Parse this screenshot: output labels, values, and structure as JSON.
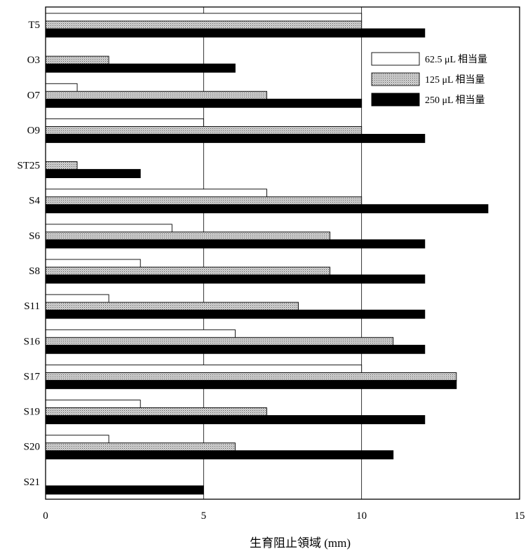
{
  "chart_data": {
    "type": "bar",
    "orientation": "horizontal",
    "categories": [
      "T5",
      "O3",
      "O7",
      "O9",
      "ST25",
      "S4",
      "S6",
      "S8",
      "S11",
      "S16",
      "S17",
      "S19",
      "S20",
      "S21"
    ],
    "series": [
      {
        "name": "62.5 μL 相当量",
        "fill": "white",
        "values": [
          10,
          0,
          1,
          5,
          0,
          7,
          4,
          3,
          2,
          6,
          10,
          3,
          2,
          0
        ]
      },
      {
        "name": "125 μL 相当量",
        "fill": "dotted",
        "values": [
          10,
          2,
          7,
          10,
          1,
          10,
          9,
          9,
          8,
          11,
          13,
          7,
          6,
          0
        ]
      },
      {
        "name": "250 μL 相当量",
        "fill": "black",
        "values": [
          12,
          6,
          10,
          12,
          3,
          14,
          12,
          12,
          12,
          12,
          13,
          12,
          11,
          5
        ]
      }
    ],
    "xlabel": "生育阻止領域 (mm)",
    "ylabel": "",
    "xlim": [
      0,
      15
    ],
    "xticks": [
      "0",
      "5",
      "10",
      "15"
    ],
    "grid": true,
    "legend_position": "top-right"
  }
}
